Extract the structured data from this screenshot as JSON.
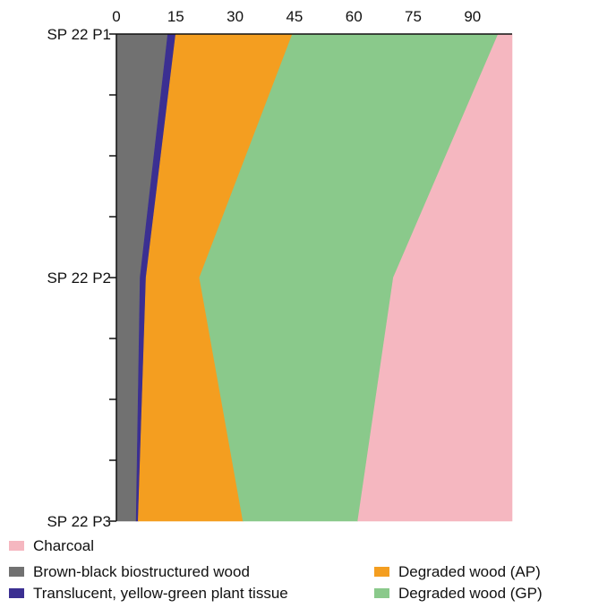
{
  "chart_data": {
    "type": "area",
    "orientation": "horizontal-stacked",
    "x_ticks": [
      0,
      15,
      30,
      45,
      60,
      75,
      90
    ],
    "xlim": [
      0,
      100
    ],
    "samples": [
      "SP 22 P1",
      "SP 22 P2",
      "SP 22 P3"
    ],
    "grid": false,
    "legend_position": "bottom",
    "series": [
      {
        "name": "Brown-black biostructured wood",
        "color": "#717171",
        "values": [
          13,
          6,
          5
        ]
      },
      {
        "name": "Translucent, yellow-green plant tissue",
        "color": "#3b2f92",
        "values": [
          2,
          1.5,
          0.5
        ]
      },
      {
        "name": "Degraded wood (AP)",
        "color": "#f49e20",
        "values": [
          29.5,
          13.5,
          26.5
        ]
      },
      {
        "name": "Degraded wood (GP)",
        "color": "#8ac98b",
        "values": [
          52,
          49,
          29
        ]
      },
      {
        "name": "Charcoal",
        "color": "#f5b7c0",
        "values": [
          3.5,
          30,
          39
        ]
      }
    ]
  },
  "legend": {
    "charcoal": "Charcoal",
    "brown_black": "Brown-black biostructured wood",
    "translucent": "Translucent, yellow-green plant tissue",
    "degraded_ap": "Degraded wood (AP)",
    "degraded_gp": "Degraded wood (GP)"
  }
}
